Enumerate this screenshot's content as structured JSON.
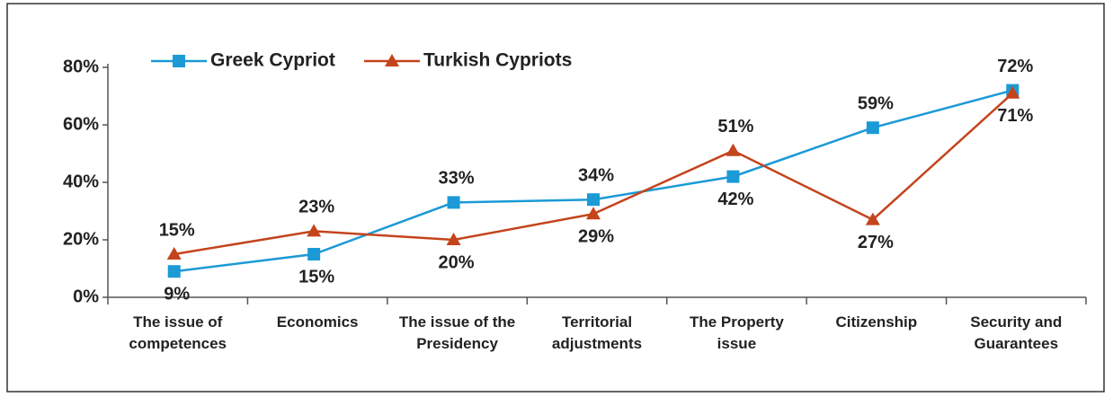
{
  "chart_data": {
    "type": "line",
    "categories": [
      "The issue of competences",
      "Economics",
      "The issue of the Presidency",
      "Territorial adjustments",
      "The Property issue",
      "Citizenship",
      "Security and Guarantees"
    ],
    "series": [
      {
        "name": "Greek Cypriot",
        "color": "#1b9ad6",
        "marker": "square",
        "values": [
          9,
          15,
          33,
          34,
          42,
          59,
          72
        ],
        "value_labels": [
          "9%",
          "15%",
          "33%",
          "34%",
          "42%",
          "59%",
          "72%"
        ]
      },
      {
        "name": "Turkish Cypriots",
        "color": "#c4441c",
        "marker": "triangle",
        "values": [
          15,
          23,
          20,
          29,
          51,
          27,
          71
        ],
        "value_labels": [
          "15%",
          "23%",
          "20%",
          "29%",
          "51%",
          "27%",
          "71%"
        ]
      }
    ],
    "ylim": [
      0,
      80
    ],
    "yticks": [
      {
        "value": 0,
        "label": "0%"
      },
      {
        "value": 20,
        "label": "20%"
      },
      {
        "value": 40,
        "label": "40%"
      },
      {
        "value": 60,
        "label": "60%"
      },
      {
        "value": 80,
        "label": "80%"
      }
    ],
    "grid": false,
    "legend": "top-left"
  }
}
